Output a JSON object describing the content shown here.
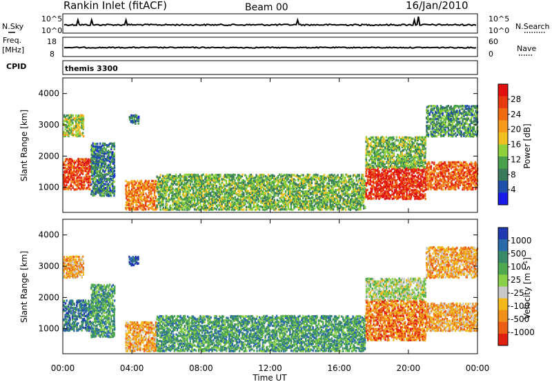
{
  "header": {
    "station": "Rankin Inlet (fitACF)",
    "beam": "Beam 00",
    "date": "16/Jan/2010"
  },
  "strip_panels": {
    "nsky": {
      "left_label": "N.Sky",
      "right_label": "N.Search",
      "left_ticks": [
        "10^5",
        "10^0"
      ],
      "right_ticks": [
        "10^5",
        "10^0"
      ]
    },
    "freq": {
      "left_label_1": "Freq.",
      "left_label_2": "[MHz]",
      "right_label": "Nave",
      "left_ticks": [
        "18",
        "8"
      ],
      "right_ticks": [
        "60",
        "0"
      ]
    },
    "cpid": {
      "left_label": "CPID",
      "value": "themis 3300"
    }
  },
  "time_axis": {
    "label": "Time UT",
    "ticks": [
      "00:00",
      "04:00",
      "08:00",
      "12:00",
      "16:00",
      "20:00",
      "00:00"
    ]
  },
  "colors": {
    "power_scale": [
      "#1a1ae6",
      "#1f4fa8",
      "#3a7a5a",
      "#4aa04a",
      "#8fd13a",
      "#f0c020",
      "#f59a1a",
      "#f06a10",
      "#e83a10",
      "#e01010"
    ],
    "velocity_scale": [
      "#2038b0",
      "#2a6aa8",
      "#3a8a6a",
      "#50a850",
      "#8ad048",
      "#c8c8c8",
      "#f2b818",
      "#f0901a",
      "#ec5e14",
      "#e02010"
    ]
  },
  "chart_data": [
    {
      "type": "heatmap",
      "panel": "Power",
      "ylabel": "Slant Range [km]",
      "xlabel": "Time UT",
      "ylim": [
        200,
        4500
      ],
      "yticks": [
        "1000",
        "2000",
        "3000",
        "4000"
      ],
      "colorbar": {
        "label": "Power [dB]",
        "ticks": [
          "4",
          "8",
          "12",
          "16",
          "20",
          "24",
          "28"
        ],
        "range": [
          0,
          31
        ]
      },
      "regions": [
        {
          "t0": 0.0,
          "t1": 1.6,
          "r0": 900,
          "r1": 1900,
          "value": 26
        },
        {
          "t0": 0.0,
          "t1": 1.2,
          "r0": 2600,
          "r1": 3300,
          "value": 14
        },
        {
          "t0": 1.6,
          "t1": 3.0,
          "r0": 700,
          "r1": 2400,
          "value": 8
        },
        {
          "t0": 3.8,
          "t1": 4.4,
          "r0": 3000,
          "r1": 3300,
          "value": 6
        },
        {
          "t0": 3.6,
          "t1": 5.4,
          "r0": 250,
          "r1": 1200,
          "value": 22
        },
        {
          "t0": 5.4,
          "t1": 17.5,
          "r0": 250,
          "r1": 1400,
          "value": 12
        },
        {
          "t0": 17.5,
          "t1": 21.0,
          "r0": 600,
          "r1": 1600,
          "value": 28
        },
        {
          "t0": 17.5,
          "t1": 21.0,
          "r0": 1600,
          "r1": 2600,
          "value": 12
        },
        {
          "t0": 21.0,
          "t1": 24.0,
          "r0": 900,
          "r1": 1800,
          "value": 24
        },
        {
          "t0": 21.0,
          "t1": 24.0,
          "r0": 2600,
          "r1": 3600,
          "value": 10
        }
      ]
    },
    {
      "type": "heatmap",
      "panel": "Velocity",
      "ylabel": "Slant Range [km]",
      "xlabel": "Time UT",
      "ylim": [
        200,
        4500
      ],
      "yticks": [
        "1000",
        "2000",
        "3000",
        "4000"
      ],
      "colorbar": {
        "label": "Velocity [m s",
        "label_sup": "-1",
        "label_end": "]",
        "ticks": [
          "1000",
          "500",
          "100",
          "25",
          "-25",
          "-100",
          "-500",
          "-1000"
        ]
      },
      "regions": [
        {
          "t0": 0.0,
          "t1": 1.6,
          "r0": 900,
          "r1": 1900,
          "value": 2
        },
        {
          "t0": 0.0,
          "t1": 1.2,
          "r0": 2600,
          "r1": 3300,
          "value": 7
        },
        {
          "t0": 1.6,
          "t1": 3.0,
          "r0": 700,
          "r1": 2400,
          "value": 3
        },
        {
          "t0": 3.8,
          "t1": 4.4,
          "r0": 3000,
          "r1": 3300,
          "value": 1
        },
        {
          "t0": 3.6,
          "t1": 5.4,
          "r0": 250,
          "r1": 1200,
          "value": 7
        },
        {
          "t0": 5.4,
          "t1": 17.5,
          "r0": 250,
          "r1": 1400,
          "value": 3
        },
        {
          "t0": 17.5,
          "t1": 21.0,
          "r0": 600,
          "r1": 1900,
          "value": 8
        },
        {
          "t0": 17.5,
          "t1": 21.0,
          "r0": 1900,
          "r1": 2600,
          "value": 5
        },
        {
          "t0": 21.0,
          "t1": 24.0,
          "r0": 900,
          "r1": 1800,
          "value": 7
        },
        {
          "t0": 21.0,
          "t1": 24.0,
          "r0": 2600,
          "r1": 3600,
          "value": 7
        }
      ]
    }
  ]
}
